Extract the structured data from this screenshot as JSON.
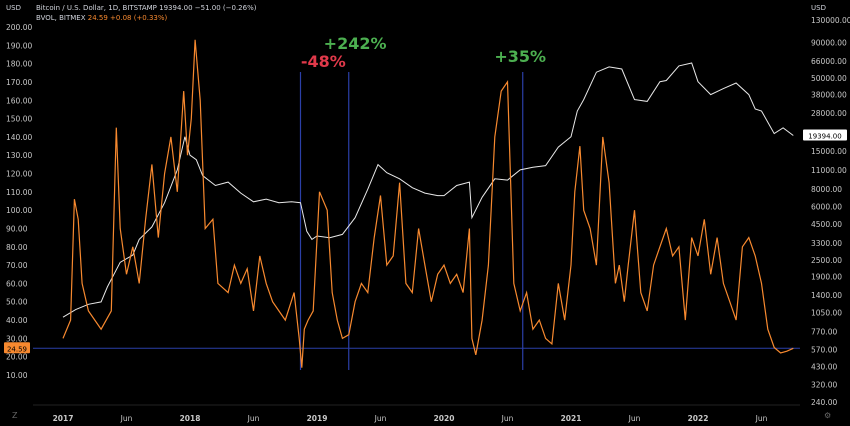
{
  "header": {
    "symbol_line": "Bitcoin / U.S. Dollar, 1D, BITSTAMP",
    "price": "19394.00",
    "change": "−51.00 (−0.26%)",
    "bvol_symbol": "BVOL, BITMEX",
    "bvol_value": "24.59",
    "bvol_change": "+0.08 (+0.33%)",
    "left_currency": "USD",
    "right_currency": "USD"
  },
  "colors": {
    "background": "#000000",
    "btc_line": "#e8e8e8",
    "bvol_line": "#f7892f",
    "markers": "#2b3fa8",
    "negative": "#e0394a",
    "positive": "#4caf50"
  },
  "chart_data": {
    "type": "line",
    "x_tick_labels": [
      "2017",
      "Jun",
      "2018",
      "Jun",
      "2019",
      "Jun",
      "2020",
      "Jun",
      "2021",
      "Jun",
      "2022",
      "Jun"
    ],
    "left_axis": {
      "ticks": [
        "200.00",
        "190.00",
        "180.00",
        "170.00",
        "160.00",
        "150.00",
        "140.00",
        "130.00",
        "120.00",
        "110.00",
        "100.00",
        "90.00",
        "80.00",
        "70.00",
        "60.00",
        "50.00",
        "40.00",
        "30.00",
        "20.00",
        "10.00"
      ],
      "range": [
        10,
        200
      ]
    },
    "right_axis": {
      "scale": "log",
      "ticks": [
        "130000.00",
        "90000.00",
        "66000.00",
        "50000.00",
        "38000.00",
        "28000.00",
        "15000.00",
        "11000.00",
        "8000.00",
        "6000.00",
        "4500.00",
        "3300.00",
        "2500.00",
        "1900.00",
        "1400.00",
        "1050.00",
        "770.00",
        "570.00",
        "430.00",
        "320.00",
        "240.00"
      ],
      "range": [
        200,
        130000
      ]
    },
    "series": [
      {
        "name": "Bitcoin / U.S. Dollar, 1D, BITSTAMP",
        "axis": "right",
        "x": [
          2017.0,
          2017.1,
          2017.2,
          2017.3,
          2017.35,
          2017.45,
          2017.55,
          2017.6,
          2017.7,
          2017.8,
          2017.9,
          2017.96,
          2018.0,
          2018.05,
          2018.1,
          2018.2,
          2018.3,
          2018.4,
          2018.5,
          2018.6,
          2018.7,
          2018.8,
          2018.87,
          2018.92,
          2018.96,
          2019.0,
          2019.1,
          2019.2,
          2019.3,
          2019.4,
          2019.48,
          2019.55,
          2019.65,
          2019.75,
          2019.85,
          2019.95,
          2020.0,
          2020.1,
          2020.2,
          2020.22,
          2020.3,
          2020.4,
          2020.5,
          2020.6,
          2020.7,
          2020.8,
          2020.9,
          2021.0,
          2021.05,
          2021.1,
          2021.2,
          2021.3,
          2021.4,
          2021.5,
          2021.6,
          2021.7,
          2021.75,
          2021.85,
          2021.95,
          2022.0,
          2022.1,
          2022.2,
          2022.3,
          2022.4,
          2022.45,
          2022.5,
          2022.6,
          2022.67,
          2022.75
        ],
        "y": [
          970,
          1100,
          1200,
          1250,
          1600,
          2400,
          2700,
          3500,
          4300,
          6400,
          11000,
          19000,
          14000,
          13000,
          10000,
          8500,
          9000,
          7500,
          6500,
          6800,
          6400,
          6500,
          6400,
          4000,
          3500,
          3700,
          3600,
          3800,
          5000,
          8000,
          12000,
          10500,
          9500,
          8200,
          7500,
          7200,
          7200,
          8500,
          9000,
          5000,
          7000,
          9500,
          9300,
          11000,
          11500,
          11800,
          16000,
          19000,
          29000,
          35000,
          55000,
          60000,
          58000,
          35000,
          34000,
          47000,
          48000,
          61000,
          64000,
          47000,
          38000,
          42000,
          46000,
          38000,
          30000,
          29000,
          20000,
          22000,
          19394
        ]
      },
      {
        "name": "BVOL, BITMEX",
        "axis": "left",
        "x": [
          2017.0,
          2017.06,
          2017.09,
          2017.12,
          2017.15,
          2017.2,
          2017.25,
          2017.3,
          2017.38,
          2017.42,
          2017.45,
          2017.5,
          2017.55,
          2017.6,
          2017.65,
          2017.7,
          2017.75,
          2017.8,
          2017.85,
          2017.9,
          2017.95,
          2017.98,
          2018.01,
          2018.04,
          2018.08,
          2018.12,
          2018.18,
          2018.22,
          2018.3,
          2018.35,
          2018.4,
          2018.45,
          2018.5,
          2018.55,
          2018.6,
          2018.65,
          2018.7,
          2018.75,
          2018.82,
          2018.86,
          2018.88,
          2018.9,
          2018.93,
          2018.97,
          2019.02,
          2019.08,
          2019.12,
          2019.16,
          2019.2,
          2019.25,
          2019.3,
          2019.35,
          2019.4,
          2019.45,
          2019.5,
          2019.55,
          2019.6,
          2019.65,
          2019.7,
          2019.75,
          2019.8,
          2019.85,
          2019.9,
          2019.95,
          2020.0,
          2020.05,
          2020.1,
          2020.15,
          2020.2,
          2020.22,
          2020.25,
          2020.3,
          2020.35,
          2020.4,
          2020.45,
          2020.5,
          2020.55,
          2020.6,
          2020.65,
          2020.7,
          2020.75,
          2020.8,
          2020.85,
          2020.9,
          2020.95,
          2021.0,
          2021.03,
          2021.07,
          2021.1,
          2021.15,
          2021.2,
          2021.25,
          2021.3,
          2021.35,
          2021.38,
          2021.42,
          2021.45,
          2021.5,
          2021.55,
          2021.6,
          2021.65,
          2021.7,
          2021.75,
          2021.8,
          2021.85,
          2021.9,
          2021.95,
          2022.0,
          2022.05,
          2022.1,
          2022.15,
          2022.2,
          2022.25,
          2022.3,
          2022.35,
          2022.4,
          2022.45,
          2022.5,
          2022.55,
          2022.6,
          2022.65,
          2022.7,
          2022.75
        ],
        "y": [
          30,
          40,
          106,
          95,
          60,
          45,
          40,
          35,
          45,
          145,
          90,
          65,
          80,
          60,
          95,
          125,
          85,
          120,
          140,
          110,
          165,
          130,
          150,
          193,
          160,
          90,
          95,
          60,
          55,
          70,
          60,
          68,
          45,
          75,
          60,
          50,
          45,
          40,
          55,
          30,
          14,
          35,
          40,
          45,
          110,
          100,
          55,
          40,
          30,
          32,
          50,
          60,
          55,
          85,
          108,
          70,
          75,
          115,
          60,
          55,
          90,
          70,
          50,
          65,
          70,
          60,
          65,
          55,
          90,
          30,
          21,
          40,
          70,
          140,
          165,
          170,
          60,
          45,
          55,
          35,
          40,
          30,
          27,
          60,
          40,
          70,
          110,
          135,
          100,
          90,
          70,
          140,
          115,
          60,
          70,
          50,
          70,
          100,
          55,
          45,
          70,
          80,
          90,
          75,
          80,
          40,
          85,
          75,
          95,
          65,
          85,
          60,
          50,
          40,
          80,
          85,
          75,
          60,
          35,
          25,
          22,
          23,
          24.59
        ]
      }
    ],
    "markers": [
      {
        "x": 2018.87
      },
      {
        "x": 2019.25
      },
      {
        "x": 2020.62
      }
    ],
    "horizontal_line": {
      "y": 24.59,
      "axis": "left"
    },
    "annotations": [
      {
        "text": "-48%",
        "x": 2019.05,
        "color": "negative"
      },
      {
        "text": "+242%",
        "x": 2019.3,
        "color": "positive"
      },
      {
        "text": "+35%",
        "x": 2020.6,
        "color": "positive"
      }
    ],
    "last_values": {
      "btc": "19394.00",
      "bvol": "24.59"
    },
    "grid": false
  },
  "corners": {
    "bottom_left": "Z",
    "bottom_right": "⚙"
  }
}
